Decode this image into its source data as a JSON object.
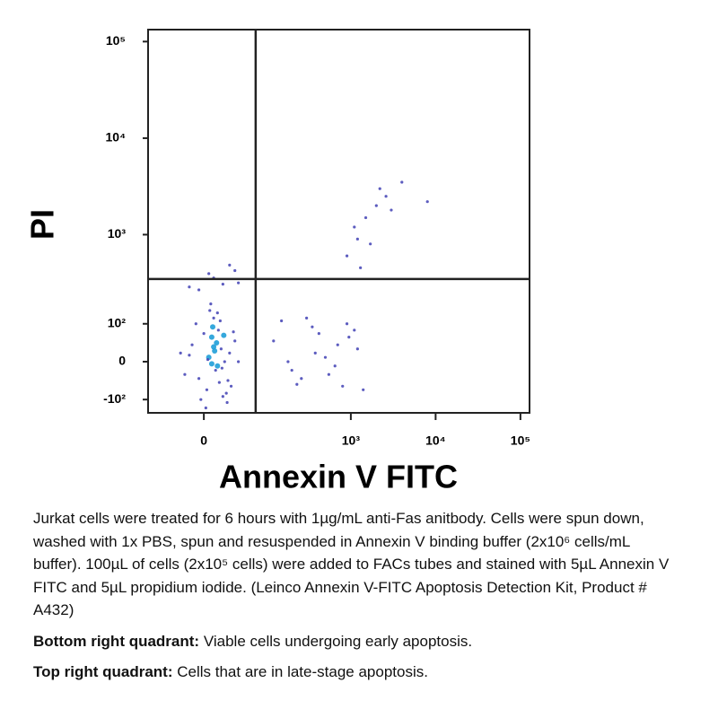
{
  "chart_data": {
    "type": "scatter",
    "x_label": "Annexin V FITC",
    "y_label": "PI",
    "color": "#4a4ab8",
    "xlim": [
      -80,
      128000
    ],
    "ylim": [
      -150,
      133000
    ],
    "xticks": [
      0,
      {
        "value": 1000,
        "label": "10³"
      },
      {
        "value": 10000,
        "label": "10⁴"
      },
      {
        "value": 100000,
        "label": "10⁵"
      }
    ],
    "yticks": [
      {
        "value": -100,
        "label": "-10²"
      },
      0,
      {
        "value": 100,
        "label": "10²"
      },
      {
        "value": 1000,
        "label": "10³"
      },
      {
        "value": 10000,
        "label": "10⁴"
      },
      {
        "value": 100000,
        "label": "10⁵"
      }
    ],
    "gates": {
      "x": 71,
      "y": 341
    },
    "x": [
      5,
      12,
      18,
      8,
      -5,
      22,
      15,
      3,
      10,
      28,
      -12,
      20,
      6,
      14,
      35,
      -20,
      9,
      25,
      0,
      16,
      -8,
      30,
      11,
      4,
      19,
      13,
      -15,
      24,
      7,
      40,
      2,
      17,
      -25,
      26,
      10,
      33,
      -3,
      21,
      8,
      14,
      -5,
      20,
      35,
      10,
      28,
      -15,
      40,
      5,
      120,
      200,
      350,
      500,
      800,
      1200,
      150,
      260,
      420,
      650,
      950,
      1400,
      180,
      300,
      550,
      700,
      1100,
      230,
      380,
      900,
      900,
      1200,
      1500,
      2000,
      2600,
      4000,
      8000,
      1100,
      1700,
      3000,
      1300,
      2200
    ],
    "y": [
      10,
      -20,
      30,
      60,
      -40,
      0,
      80,
      -70,
      120,
      20,
      40,
      -90,
      150,
      -10,
      50,
      -30,
      90,
      -110,
      70,
      -50,
      100,
      -60,
      25,
      5,
      -15,
      45,
      15,
      -80,
      180,
      0,
      -130,
      110,
      20,
      -45,
      35,
      75,
      -100,
      65,
      -5,
      140,
      260,
      300,
      420,
      350,
      480,
      280,
      310,
      390,
      50,
      -20,
      90,
      10,
      -60,
      30,
      110,
      -40,
      70,
      -10,
      60,
      -70,
      0,
      120,
      -30,
      40,
      80,
      -55,
      20,
      100,
      600,
      900,
      1500,
      2000,
      2500,
      3500,
      2200,
      1200,
      800,
      1800,
      450,
      3000
    ]
  },
  "caption": {
    "text": "Jurkat cells were treated for 6 hours with 1µg/mL anti-Fas anitbody. Cells were spun down, washed with 1x PBS, spun and resuspended in Annexin V binding buffer (2x10⁶ cells/mL buffer). 100µL of cells (2x10⁵ cells) were added to FACs tubes and stained with 5µL Annexin V FITC and 5µL propidium iodide. (Leinco Annexin V-FITC Apoptosis Detection Kit, Product # A432)",
    "notes": [
      {
        "label": "Bottom right quadrant:",
        "text": "Viable cells undergoing early apoptosis."
      },
      {
        "label": "Top right quadrant:",
        "text": "Cells that are in late-stage apoptosis."
      }
    ]
  }
}
